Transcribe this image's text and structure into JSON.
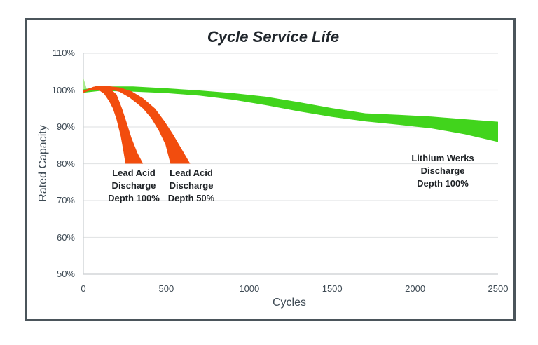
{
  "colors": {
    "background": "#FFFFFF",
    "frame_border": "#4B555B",
    "gridline": "#E3E5E6",
    "axis_line": "#CDD1D4",
    "tick_text": "#3E4A54",
    "title_text": "#20262C",
    "annotation_text": "#1D2125",
    "lithium_green": "#41D41C",
    "lead_acid_orange": "#F24D0E",
    "start_tick_green": "#A9E98F"
  },
  "chart_data": {
    "type": "area",
    "title": "Cycle Service Life",
    "xlabel": "Cycles",
    "ylabel": "Rated Capacity",
    "xlim": [
      0,
      2500
    ],
    "ylim": [
      50,
      110
    ],
    "x_ticks": [
      0,
      500,
      1000,
      1500,
      2000,
      2500
    ],
    "x_tick_labels": [
      "0",
      "500",
      "1000",
      "1500",
      "2000",
      "2500"
    ],
    "y_ticks": [
      110,
      100,
      90,
      80,
      70,
      60,
      50
    ],
    "y_tick_labels": [
      "110%",
      "100%",
      "90%",
      "80%",
      "70%",
      "60%",
      "50%"
    ],
    "grid": "horizontal-only",
    "legend": "none (series labeled by text annotations)",
    "units": {
      "x": "cycles",
      "y": "percent rated capacity"
    },
    "series": [
      {
        "id": "start-tick",
        "name": "initial capacity tick",
        "color": "#A9E98F",
        "points": [
          [
            0,
            103.3
          ],
          [
            16,
            101.0
          ],
          [
            22,
            99.9
          ],
          [
            0,
            99.1
          ]
        ]
      },
      {
        "id": "lithium-werks-100",
        "name": "Lithium Werks Discharge Depth 100%",
        "color": "#41D41C",
        "top": [
          [
            0,
            100.2
          ],
          [
            100,
            101.0
          ],
          [
            300,
            101.0
          ],
          [
            500,
            100.5
          ],
          [
            700,
            99.9
          ],
          [
            900,
            99.2
          ],
          [
            1100,
            98.2
          ],
          [
            1300,
            96.7
          ],
          [
            1500,
            95.1
          ],
          [
            1700,
            93.7
          ],
          [
            1900,
            93.3
          ],
          [
            2100,
            92.8
          ],
          [
            2300,
            92.1
          ],
          [
            2500,
            91.4
          ]
        ],
        "bottom": [
          [
            0,
            99.3
          ],
          [
            100,
            99.8
          ],
          [
            300,
            99.6
          ],
          [
            500,
            99.2
          ],
          [
            700,
            98.5
          ],
          [
            900,
            97.4
          ],
          [
            1100,
            95.9
          ],
          [
            1300,
            94.2
          ],
          [
            1500,
            92.7
          ],
          [
            1700,
            91.5
          ],
          [
            1900,
            90.6
          ],
          [
            2100,
            89.6
          ],
          [
            2300,
            88.0
          ],
          [
            2500,
            85.9
          ]
        ]
      },
      {
        "id": "lead-acid-50",
        "name": "Lead Acid Discharge Depth 50%",
        "color": "#F24D0E",
        "top": [
          [
            0,
            99.9
          ],
          [
            80,
            101.15
          ],
          [
            150,
            101.1
          ],
          [
            220,
            100.7
          ],
          [
            290,
            99.7
          ],
          [
            360,
            97.8
          ],
          [
            432,
            95.0
          ],
          [
            490,
            91.5
          ],
          [
            540,
            88.0
          ],
          [
            595,
            83.8
          ],
          [
            644,
            80.0
          ]
        ],
        "bottom": [
          [
            0,
            99.4
          ],
          [
            80,
            100.4
          ],
          [
            150,
            100.35
          ],
          [
            220,
            99.5
          ],
          [
            280,
            97.9
          ],
          [
            320,
            96.5
          ],
          [
            360,
            95.0
          ],
          [
            410,
            92.3
          ],
          [
            455,
            89.0
          ],
          [
            495,
            85.2
          ],
          [
            525,
            80.0
          ]
        ]
      },
      {
        "id": "lead-acid-100",
        "name": "Lead Acid Discharge Depth 100%",
        "color": "#F24D0E",
        "top": [
          [
            0,
            99.8
          ],
          [
            60,
            100.9
          ],
          [
            110,
            101.2
          ],
          [
            160,
            100.5
          ],
          [
            200,
            98.8
          ],
          [
            233,
            95.0
          ],
          [
            260,
            91.3
          ],
          [
            290,
            87.0
          ],
          [
            325,
            83.0
          ],
          [
            360,
            80.0
          ]
        ],
        "bottom": [
          [
            0,
            99.3
          ],
          [
            50,
            100.1
          ],
          [
            90,
            100.1
          ],
          [
            125,
            99.0
          ],
          [
            155,
            97.0
          ],
          [
            178,
            95.0
          ],
          [
            200,
            92.0
          ],
          [
            225,
            87.5
          ],
          [
            240,
            83.8
          ],
          [
            254,
            80.0
          ]
        ]
      }
    ],
    "annotations": [
      {
        "lines": [
          "Lead Acid",
          "Discharge",
          "Depth 100%"
        ],
        "anchor": {
          "cx": 191,
          "top": 238
        }
      },
      {
        "lines": [
          "Lead Acid",
          "Discharge",
          "Depth 50%"
        ],
        "anchor": {
          "cx": 273,
          "top": 238
        }
      },
      {
        "lines": [
          "Lithium Werks",
          "Discharge",
          "Depth 100%"
        ],
        "anchor": {
          "cx": 632,
          "top": 217
        }
      }
    ]
  }
}
